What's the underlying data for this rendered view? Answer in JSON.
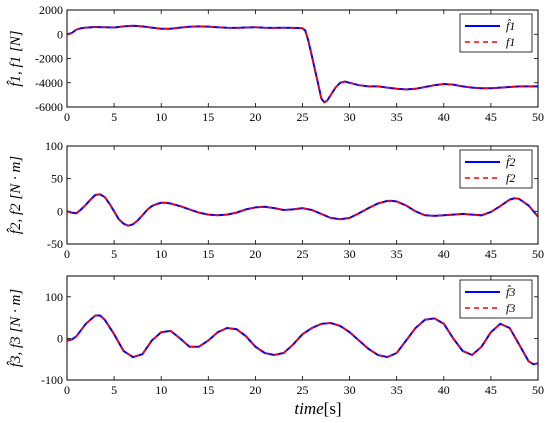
{
  "colors": {
    "estimate": "#0000ff",
    "actual": "#ff0000",
    "axis": "#000000"
  },
  "chart_data": [
    {
      "type": "line",
      "ylabel": "f̂1, f1 [N]",
      "xlim": [
        0,
        50
      ],
      "ylim": [
        -6000,
        2000
      ],
      "xticks": [
        0,
        5,
        10,
        15,
        20,
        25,
        30,
        35,
        40,
        45,
        50
      ],
      "yticks": [
        2000,
        0,
        -2000,
        -4000,
        -6000
      ],
      "ytick_labels": [
        "2000",
        "0",
        "-2000",
        "-4000",
        "-6000"
      ],
      "legend_position": "top-right",
      "series": [
        {
          "name": "f̂1",
          "style": "solid",
          "color": "#0000ff"
        },
        {
          "name": "f1",
          "style": "dashed",
          "color": "#ff0000"
        }
      ],
      "x": [
        0,
        0.5,
        1,
        1.5,
        2,
        3,
        4,
        5,
        6,
        7,
        8,
        9,
        10,
        11,
        12,
        13,
        14,
        15,
        16,
        17,
        18,
        19,
        20,
        21,
        22,
        23,
        24,
        25,
        25.3,
        25.6,
        26,
        26.4,
        26.8,
        27,
        27.3,
        27.6,
        28,
        28.5,
        29,
        29.5,
        30,
        31,
        32,
        33,
        34,
        35,
        36,
        37,
        38,
        39,
        40,
        41,
        42,
        43,
        44,
        45,
        46,
        47,
        48,
        49,
        50
      ],
      "y": [
        0,
        100,
        380,
        500,
        550,
        600,
        580,
        560,
        650,
        700,
        650,
        550,
        450,
        450,
        550,
        620,
        650,
        630,
        580,
        530,
        520,
        560,
        580,
        540,
        520,
        530,
        520,
        500,
        300,
        -500,
        -1800,
        -3200,
        -4600,
        -5300,
        -5600,
        -5500,
        -5000,
        -4400,
        -4000,
        -3900,
        -4000,
        -4200,
        -4300,
        -4300,
        -4400,
        -4500,
        -4550,
        -4500,
        -4350,
        -4200,
        -4100,
        -4150,
        -4300,
        -4400,
        -4450,
        -4450,
        -4400,
        -4350,
        -4300,
        -4300,
        -4300
      ]
    },
    {
      "type": "line",
      "ylabel": "f̂2, f2 [N · m]",
      "xlim": [
        0,
        50
      ],
      "ylim": [
        -50,
        100
      ],
      "xticks": [
        0,
        5,
        10,
        15,
        20,
        25,
        30,
        35,
        40,
        45,
        50
      ],
      "yticks": [
        100,
        50,
        0,
        -50
      ],
      "ytick_labels": [
        "100",
        "50",
        "0",
        "-50"
      ],
      "legend_position": "top-right",
      "series": [
        {
          "name": "f̂2",
          "style": "solid",
          "color": "#0000ff"
        },
        {
          "name": "f2",
          "style": "dashed",
          "color": "#ff0000"
        }
      ],
      "x": [
        0,
        0.5,
        1,
        1.5,
        2,
        2.5,
        3,
        3.5,
        4,
        4.5,
        5,
        5.5,
        6,
        6.5,
        7,
        7.5,
        8,
        8.5,
        9,
        9.5,
        10,
        10.5,
        11,
        11.5,
        12,
        13,
        14,
        15,
        16,
        17,
        18,
        19,
        20,
        21,
        22,
        23,
        24,
        25,
        26,
        27,
        28,
        29,
        30,
        31,
        32,
        33,
        34,
        34.5,
        35,
        36,
        37,
        38,
        39,
        40,
        41,
        42,
        43,
        44,
        45,
        46,
        47,
        47.5,
        48,
        49,
        50
      ],
      "y": [
        0,
        -2,
        -3,
        3,
        10,
        18,
        25,
        26,
        22,
        12,
        0,
        -12,
        -19,
        -22,
        -20,
        -14,
        -6,
        2,
        8,
        11,
        13,
        13,
        12,
        10,
        8,
        3,
        -2,
        -5,
        -6,
        -5,
        -2,
        3,
        6,
        7,
        5,
        2,
        3,
        5,
        2,
        -4,
        -10,
        -12,
        -10,
        -3,
        5,
        12,
        16,
        16,
        15,
        9,
        0,
        -6,
        -7,
        -6,
        -5,
        -4,
        -5,
        -6,
        -1,
        8,
        18,
        20,
        19,
        9,
        -8
      ]
    },
    {
      "type": "line",
      "ylabel": "f̂3, f3 [N · m]",
      "xlim": [
        0,
        50
      ],
      "ylim": [
        -100,
        150
      ],
      "xticks": [
        0,
        5,
        10,
        15,
        20,
        25,
        30,
        35,
        40,
        45,
        50
      ],
      "yticks": [
        100,
        0,
        -100
      ],
      "ytick_labels": [
        "100",
        "0",
        "-100"
      ],
      "legend_position": "top-right",
      "series": [
        {
          "name": "f̂3",
          "style": "solid",
          "color": "#0000ff"
        },
        {
          "name": "f3",
          "style": "dashed",
          "color": "#ff0000"
        }
      ],
      "x": [
        0,
        0.5,
        1,
        2,
        3,
        3.5,
        4,
        5,
        6,
        7,
        8,
        9,
        10,
        11,
        12,
        13,
        14,
        15,
        16,
        17,
        18,
        19,
        20,
        21,
        22,
        23,
        24,
        25,
        26,
        27,
        28,
        29,
        30,
        31,
        32,
        33,
        34,
        35,
        36,
        37,
        38,
        39,
        40,
        41,
        42,
        43,
        44,
        45,
        46,
        47,
        48,
        49,
        49.5,
        50
      ],
      "y": [
        -5,
        -3,
        5,
        35,
        55,
        55,
        45,
        10,
        -30,
        -45,
        -38,
        -5,
        15,
        18,
        0,
        -20,
        -20,
        -5,
        15,
        25,
        22,
        5,
        -20,
        -35,
        -40,
        -35,
        -15,
        10,
        25,
        35,
        37,
        30,
        15,
        -5,
        -25,
        -40,
        -45,
        -35,
        -5,
        25,
        45,
        48,
        35,
        0,
        -30,
        -40,
        -20,
        15,
        35,
        25,
        -15,
        -55,
        -62,
        -60
      ]
    }
  ],
  "xlabel": {
    "var": "time",
    "unit": "[s]"
  }
}
